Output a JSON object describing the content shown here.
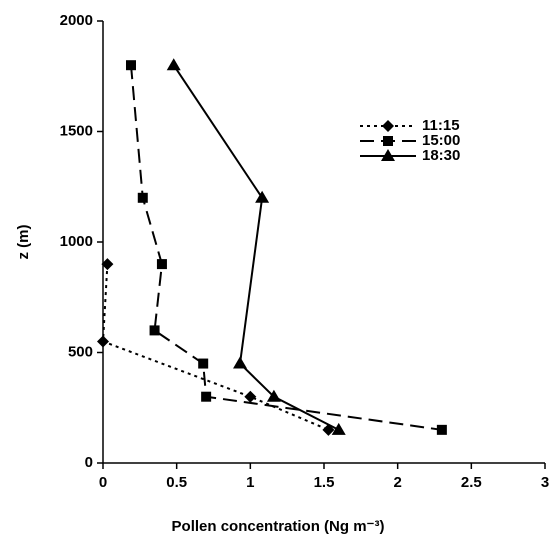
{
  "chart_data": {
    "type": "line",
    "x_label": "Pollen concentration (Ng m⁻³)",
    "y_label": "z (m)",
    "xlim": [
      0,
      3
    ],
    "xticks": [
      0,
      0.5,
      1,
      1.5,
      2,
      2.5,
      3
    ],
    "ylim": [
      0,
      2000
    ],
    "yticks": [
      0,
      500,
      1000,
      1500,
      2000
    ],
    "legend": "upper right",
    "series": [
      {
        "name": "11:15",
        "color": "#000000",
        "dash": "dotted",
        "marker": "diamond",
        "x": [
          0.03,
          0,
          1.0,
          1.53
        ],
        "values": [
          900,
          550,
          300,
          150
        ]
      },
      {
        "name": "15:00",
        "color": "#000000",
        "dash": "dashed",
        "marker": "square",
        "x": [
          0.19,
          0.27,
          0.4,
          0.35,
          0.68,
          0.7,
          2.3
        ],
        "values": [
          1800,
          1200,
          900,
          600,
          450,
          300,
          150
        ]
      },
      {
        "name": "18:30",
        "color": "#000000",
        "dash": "solid",
        "marker": "triangle",
        "x": [
          0.48,
          1.08,
          0.93,
          1.16,
          1.6
        ],
        "values": [
          1800,
          1200,
          450,
          300,
          150
        ]
      }
    ]
  }
}
